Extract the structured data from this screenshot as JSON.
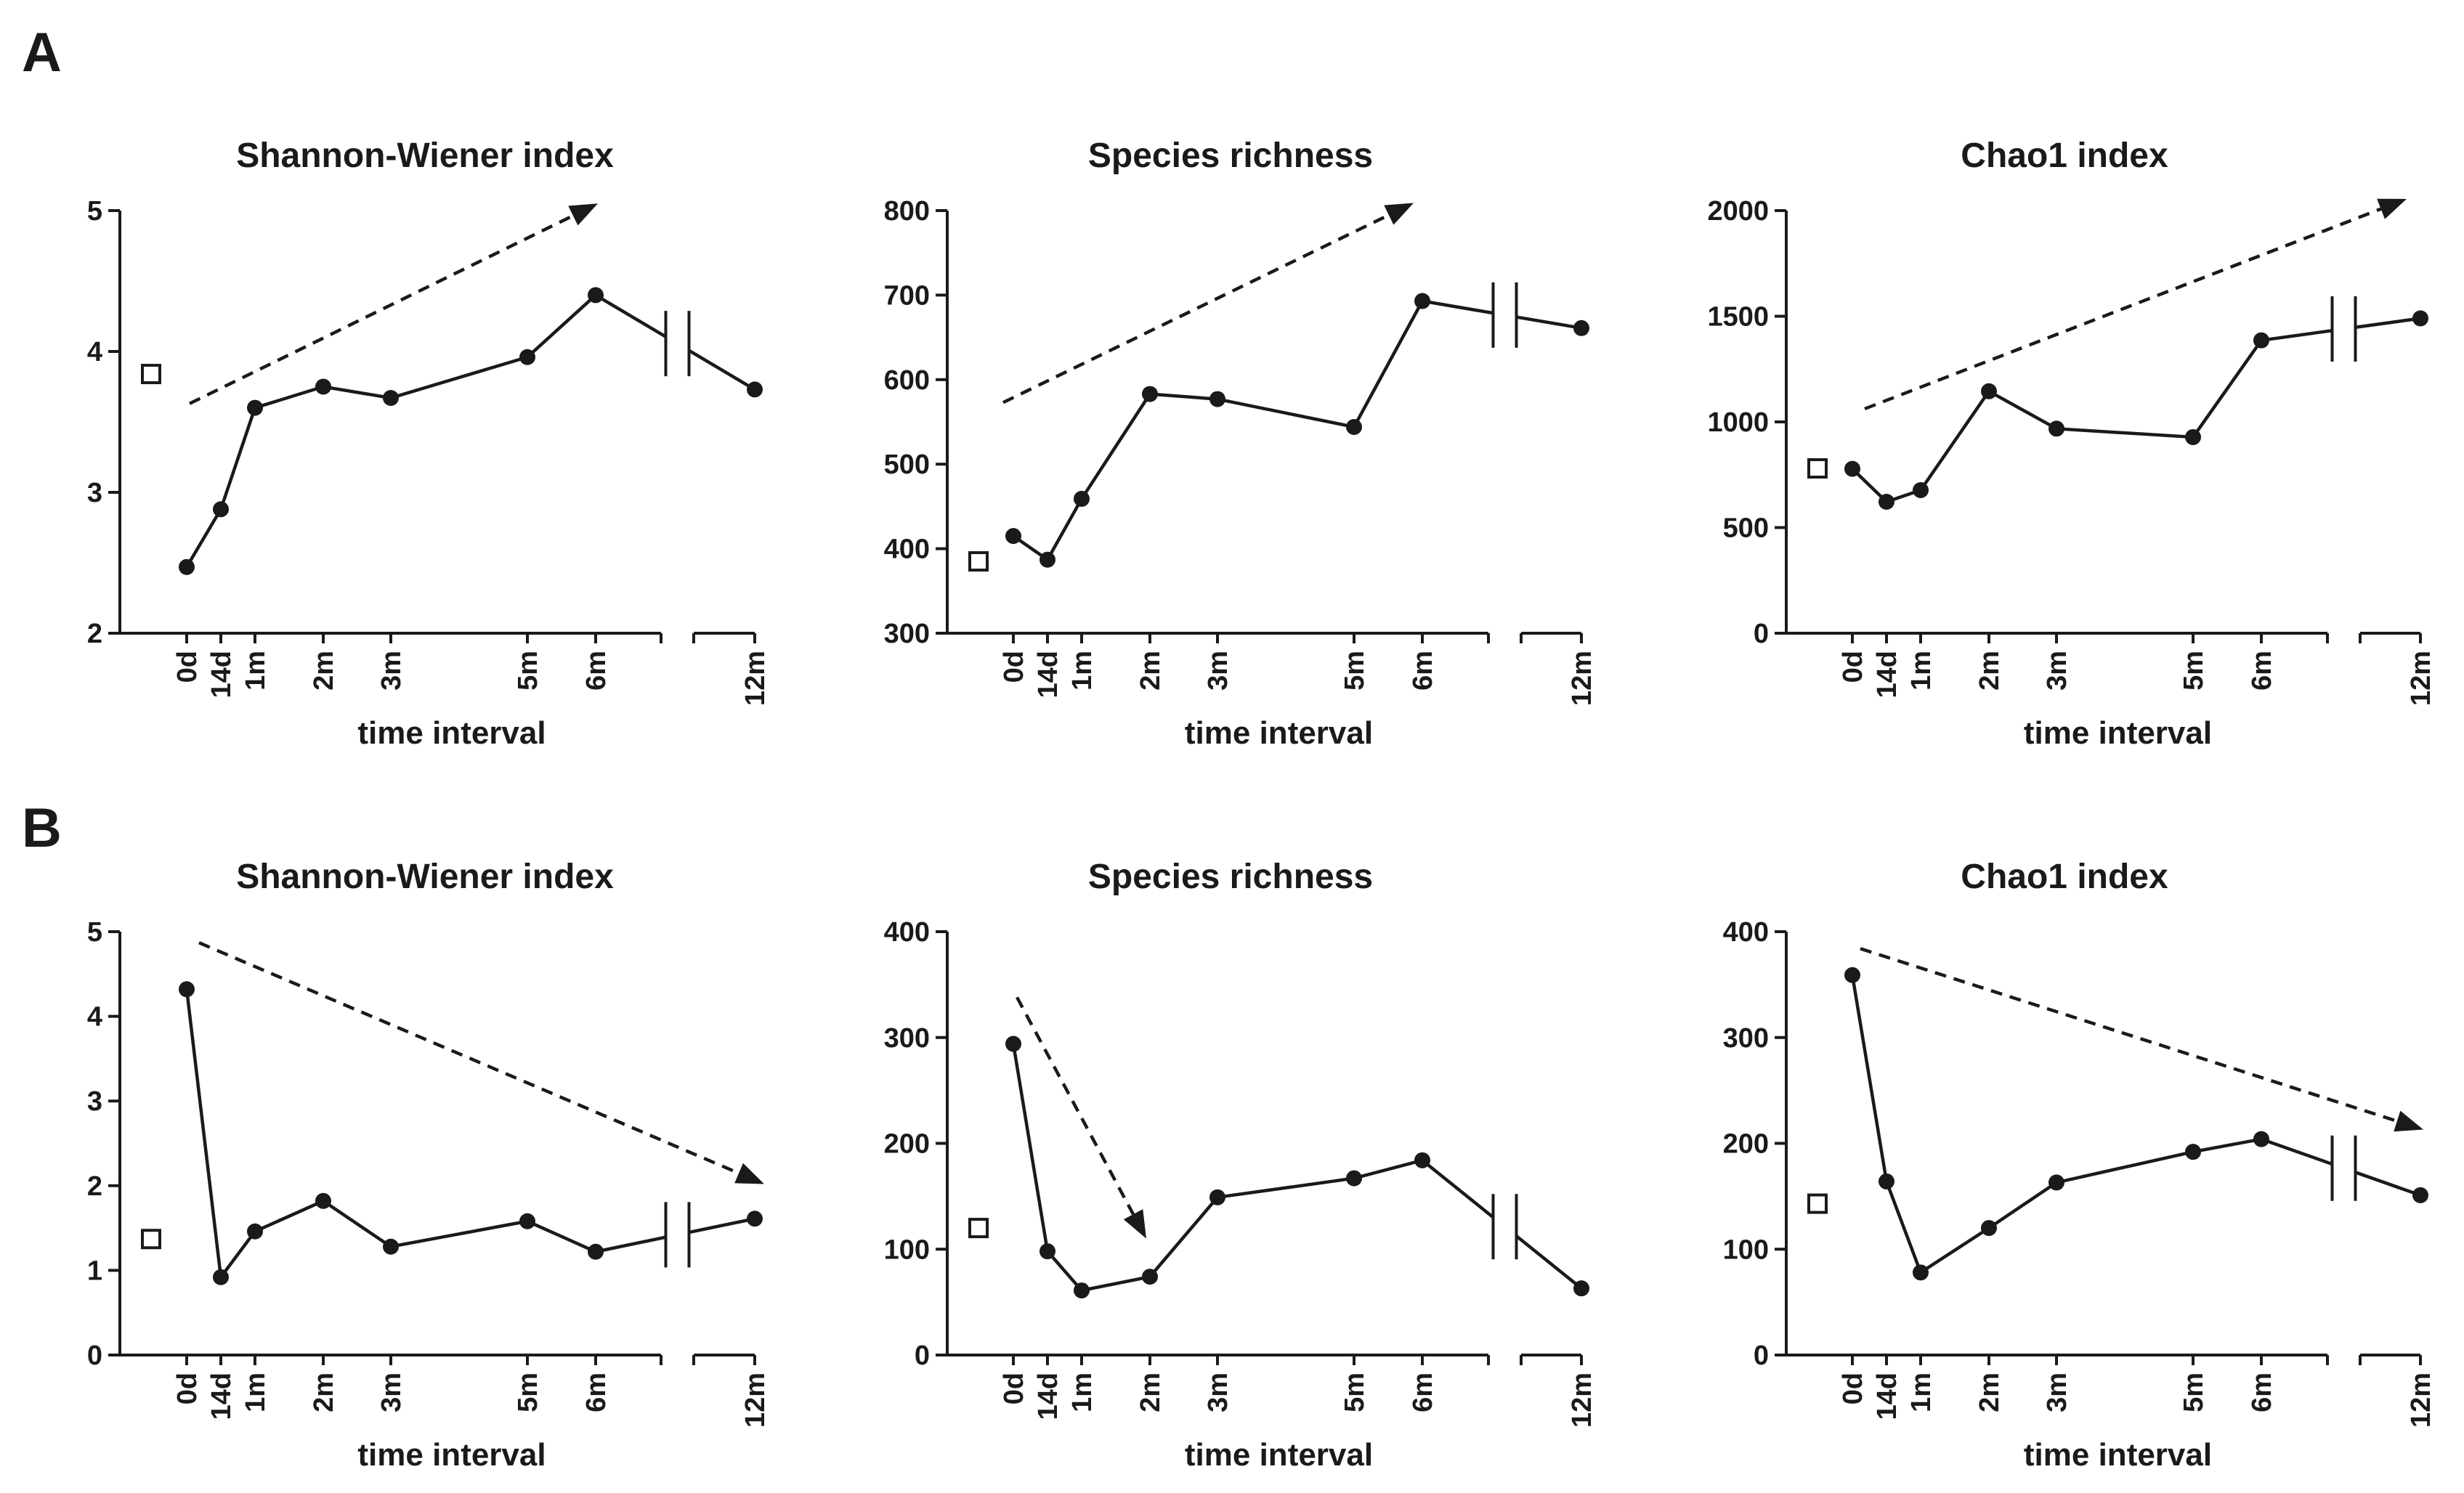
{
  "panels": [
    {
      "letter": "A"
    },
    {
      "letter": "B"
    }
  ],
  "chart_data": [
    {
      "panel": "A",
      "type": "line",
      "title": "Shannon-Wiener index",
      "xlabel": "time interval",
      "ylabel": "",
      "categories": [
        "0d",
        "14d",
        "1m",
        "2m",
        "3m",
        "5m",
        "6m",
        "12m"
      ],
      "values": [
        2.47,
        2.88,
        3.6,
        3.75,
        3.67,
        3.96,
        4.4,
        3.73
      ],
      "reference_value": 3.84,
      "ylim": [
        2,
        5
      ],
      "yticks": [
        2,
        3,
        4,
        5
      ],
      "trend": {
        "direction": "increasing",
        "start": 3.63,
        "end": 5.05
      }
    },
    {
      "panel": "A",
      "type": "line",
      "title": "Species richness",
      "xlabel": "time interval",
      "ylabel": "",
      "categories": [
        "0d",
        "14d",
        "1m",
        "2m",
        "3m",
        "5m",
        "6m",
        "12m"
      ],
      "values": [
        415,
        387,
        459,
        583,
        577,
        544,
        693,
        661
      ],
      "reference_value": 385,
      "ylim": [
        300,
        800
      ],
      "yticks": [
        300,
        400,
        500,
        600,
        700,
        800
      ],
      "trend": {
        "direction": "increasing",
        "start": 573,
        "end": 809
      }
    },
    {
      "panel": "A",
      "type": "line",
      "title": "Chao1 index",
      "xlabel": "time interval",
      "ylabel": "",
      "categories": [
        "0d",
        "14d",
        "1m",
        "2m",
        "3m",
        "5m",
        "6m",
        "12m"
      ],
      "values": [
        778,
        622,
        677,
        1145,
        968,
        928,
        1386,
        1490
      ],
      "reference_value": 780,
      "ylim": [
        0,
        2000
      ],
      "yticks": [
        0,
        500,
        1000,
        1500,
        2000
      ],
      "trend": {
        "direction": "increasing",
        "start": 1062,
        "end": 2055
      }
    },
    {
      "panel": "B",
      "type": "line",
      "title": "Shannon-Wiener index",
      "xlabel": "time interval",
      "ylabel": "",
      "categories": [
        "0d",
        "14d",
        "1m",
        "2m",
        "3m",
        "5m",
        "6m",
        "12m"
      ],
      "values": [
        4.32,
        0.92,
        1.46,
        1.82,
        1.28,
        1.58,
        1.22,
        1.61
      ],
      "reference_value": 1.37,
      "ylim": [
        0,
        5
      ],
      "yticks": [
        0,
        1,
        2,
        3,
        4,
        5
      ],
      "trend": {
        "direction": "decreasing",
        "start": 4.87,
        "end": 2.02
      }
    },
    {
      "panel": "B",
      "type": "line",
      "title": "Species richness",
      "xlabel": "time interval",
      "ylabel": "",
      "categories": [
        "0d",
        "14d",
        "1m",
        "2m",
        "3m",
        "5m",
        "6m",
        "12m"
      ],
      "values": [
        294,
        98,
        61,
        74,
        149,
        167,
        184,
        63
      ],
      "reference_value": 120,
      "ylim": [
        0,
        400
      ],
      "yticks": [
        0,
        100,
        200,
        300,
        400
      ],
      "trend": {
        "direction": "decreasing",
        "start": 338,
        "end": 110
      }
    },
    {
      "panel": "B",
      "type": "line",
      "title": "Chao1 index",
      "xlabel": "time interval",
      "ylabel": "",
      "categories": [
        "0d",
        "14d",
        "1m",
        "2m",
        "3m",
        "5m",
        "6m",
        "12m"
      ],
      "values": [
        359,
        164,
        78,
        120,
        163,
        192,
        204,
        151
      ],
      "reference_value": 143,
      "ylim": [
        0,
        400
      ],
      "yticks": [
        0,
        100,
        200,
        300,
        400
      ],
      "trend": {
        "direction": "decreasing",
        "start": 384,
        "end": 213
      }
    }
  ]
}
